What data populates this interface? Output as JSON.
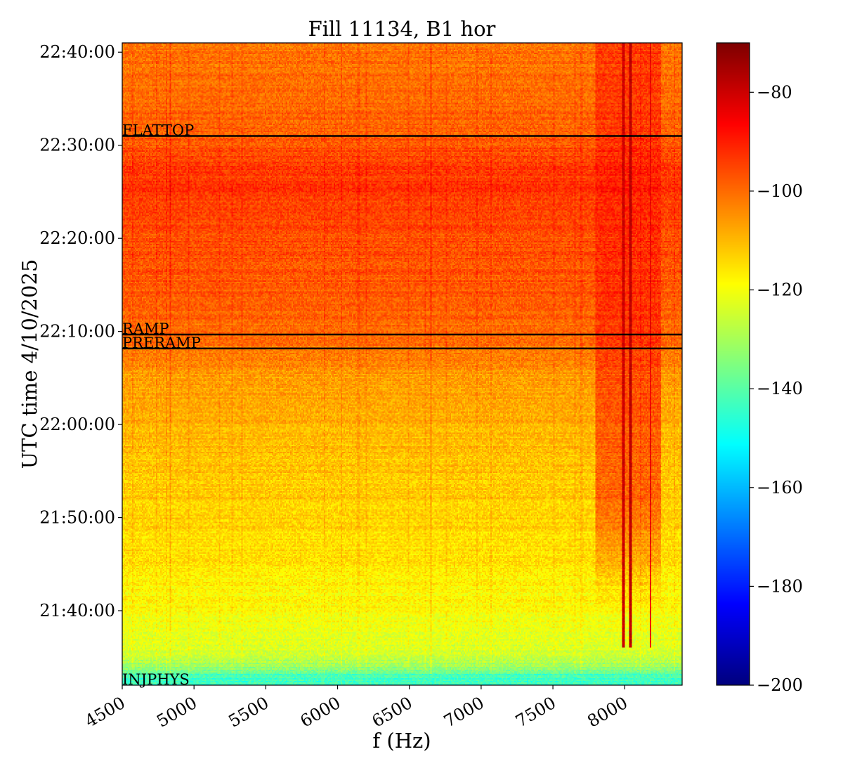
{
  "chart_data": {
    "type": "heatmap",
    "title": "Fill 11134, B1 hor",
    "xlabel": "f (Hz)",
    "ylabel": "UTC time 4/10/2025",
    "xlim": [
      4500,
      8400
    ],
    "ylim_minutes": [
      1292.0,
      1361.0
    ],
    "x_ticks": [
      {
        "value": 4500,
        "label": "4500"
      },
      {
        "value": 5000,
        "label": "5000"
      },
      {
        "value": 5500,
        "label": "5500"
      },
      {
        "value": 6000,
        "label": "6000"
      },
      {
        "value": 6500,
        "label": "6500"
      },
      {
        "value": 7000,
        "label": "7000"
      },
      {
        "value": 7500,
        "label": "7500"
      },
      {
        "value": 8000,
        "label": "8000"
      }
    ],
    "y_ticks": [
      {
        "value": "21:40:00",
        "label": "21:40:00"
      },
      {
        "value": "21:50:00",
        "label": "21:50:00"
      },
      {
        "value": "22:00:00",
        "label": "22:00:00"
      },
      {
        "value": "22:10:00",
        "label": "22:10:00"
      },
      {
        "value": "22:20:00",
        "label": "22:20:00"
      },
      {
        "value": "22:30:00",
        "label": "22:30:00"
      },
      {
        "value": "22:40:00",
        "label": "22:40:00"
      }
    ],
    "events": [
      {
        "label": "INJPHYS",
        "time": "21:32:00"
      },
      {
        "label": "PRERAMP",
        "time": "22:08:10"
      },
      {
        "label": "RAMP",
        "time": "22:09:40"
      },
      {
        "label": "FLATTOP",
        "time": "22:31:00"
      }
    ],
    "colorbar": {
      "colormap": "jet",
      "range": [
        -200,
        -70
      ],
      "ticks": [
        {
          "value": -80,
          "label": "−80"
        },
        {
          "value": -100,
          "label": "−100"
        },
        {
          "value": -120,
          "label": "−120"
        },
        {
          "value": -140,
          "label": "−140"
        },
        {
          "value": -160,
          "label": "−160"
        },
        {
          "value": -180,
          "label": "−180"
        },
        {
          "value": -200,
          "label": "−200"
        }
      ]
    },
    "intensity_profile": {
      "time": [
        "21:32:00",
        "21:35:00",
        "21:40:00",
        "21:45:00",
        "21:50:00",
        "21:55:00",
        "22:00:00",
        "22:05:00",
        "22:08:10",
        "22:15:00",
        "22:20:00",
        "22:25:00",
        "22:28:00",
        "22:31:00",
        "22:40:00"
      ],
      "background_level_db": [
        -145,
        -125,
        -119,
        -116,
        -113,
        -111,
        -109,
        -106,
        -101,
        -97,
        -96,
        -93,
        -94,
        -98,
        -101
      ]
    },
    "spectral_lines": [
      {
        "f": 7990,
        "level_db": -80
      },
      {
        "f": 8040,
        "level_db": -78
      },
      {
        "f": 8180,
        "level_db": -84
      }
    ],
    "hot_region": {
      "f_range": [
        7800,
        8250
      ],
      "time_range": [
        "21:40:00",
        "22:40:00"
      ],
      "level_db": -88
    }
  }
}
